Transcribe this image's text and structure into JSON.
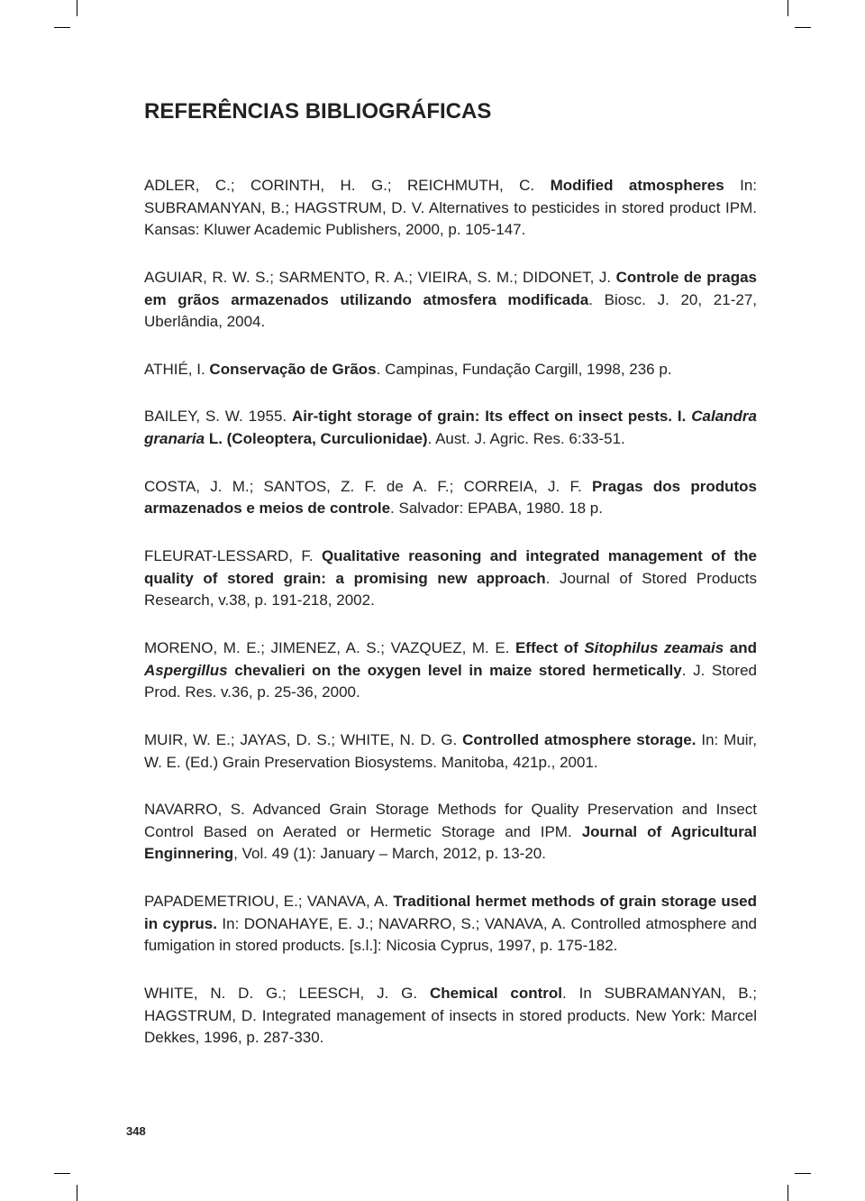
{
  "page": {
    "title": "REFERÊNCIAS BIBLIOGRÁFICAS",
    "page_number": "348",
    "background_color": "#ffffff",
    "text_color": "#222222",
    "title_fontsize": 24,
    "body_fontsize": 17,
    "font_family": "Arial",
    "refs": [
      {
        "authors_pre": "ADLER, C.; CORINTH, H. G.; REICHMUTH, C. ",
        "bold1": "Modified atmospheres",
        "mid1": " In: SUBRAMANYAN, B.; HAGSTRUM, D. V. Alternatives to pesticides in stored product IPM. Kansas: Kluwer Academic Publishers, 2000, p. 105-147."
      },
      {
        "authors_pre": "AGUIAR, R. W. S.; SARMENTO, R. A.; VIEIRA, S. M.; DIDONET, J. ",
        "bold1": "Controle de pragas em grãos armazenados utilizando atmosfera modificada",
        "mid1": ". Biosc. J. 20, 21-27, Uberlândia, 2004."
      },
      {
        "authors_pre": "ATHIÉ, I. ",
        "bold1": "Conservação de Grãos",
        "mid1": ". Campinas, Fundação Cargill, 1998, 236 p."
      },
      {
        "authors_pre": "BAILEY, S. W. 1955. ",
        "bold1": "Air-tight storage of grain: Its effect on insect pests. I. ",
        "italic1": "Calandra granaria",
        "bold2": " L. (Coleoptera, Curculionidae)",
        "mid1": ". Aust. J. Agric. Res. 6:33-51."
      },
      {
        "authors_pre": "COSTA, J. M.; SANTOS, Z. F. de A. F.; CORREIA, J. F. ",
        "bold1": "Pragas dos produtos armazenados e meios de controle",
        "mid1": ". Salvador: EPABA, 1980. 18 p."
      },
      {
        "authors_pre": "FLEURAT-LESSARD, F. ",
        "bold1": "Qualitative reasoning and integrated management of the quality of stored grain: a promising new approach",
        "mid1": ". Journal of Stored Products Research, v.38, p. 191-218, 2002."
      },
      {
        "authors_pre": "MORENO, M. E.; JIMENEZ, A. S.; VAZQUEZ, M. E. ",
        "bold1": "Effect of ",
        "italic1": "Sitophilus zeamais",
        "bold2": " and ",
        "italic2": "Aspergillus",
        "bold3": " chevalieri on the oxygen level in maize stored hermetically",
        "mid1": ". J. Stored Prod. Res. v.36, p. 25-36, 2000."
      },
      {
        "authors_pre": "MUIR, W. E.; JAYAS, D. S.; WHITE, N. D. G. ",
        "bold1": "Controlled atmosphere storage.",
        "mid1": " In: Muir, W. E. (Ed.) Grain Preservation Biosystems. Manitoba, 421p., 2001."
      },
      {
        "authors_pre": "NAVARRO, S. Advanced Grain Storage Methods for Quality Preservation and Insect Control Based on Aerated or Hermetic Storage and IPM. ",
        "bold1": "Journal of Agricultural Enginnering",
        "mid1": ", Vol. 49 (1): January – March, 2012, p. 13-20."
      },
      {
        "authors_pre": "PAPADEMETRIOU, E.; VANAVA, A. ",
        "bold1": "Traditional hermet methods of grain storage used in cyprus.",
        "mid1": " In: DONAHAYE, E. J.; NAVARRO, S.; VANAVA, A. Controlled atmosphere and fumigation in stored products. [s.l.]: Nicosia Cyprus, 1997, p. 175-182."
      },
      {
        "authors_pre": "WHITE, N. D. G.; LEESCH, J. G. ",
        "bold1": "Chemical control",
        "mid1": ". In SUBRAMANYAN, B.; HAGSTRUM, D. Integrated management of insects in stored products. New York: Marcel Dekkes, 1996, p. 287-330."
      }
    ]
  }
}
